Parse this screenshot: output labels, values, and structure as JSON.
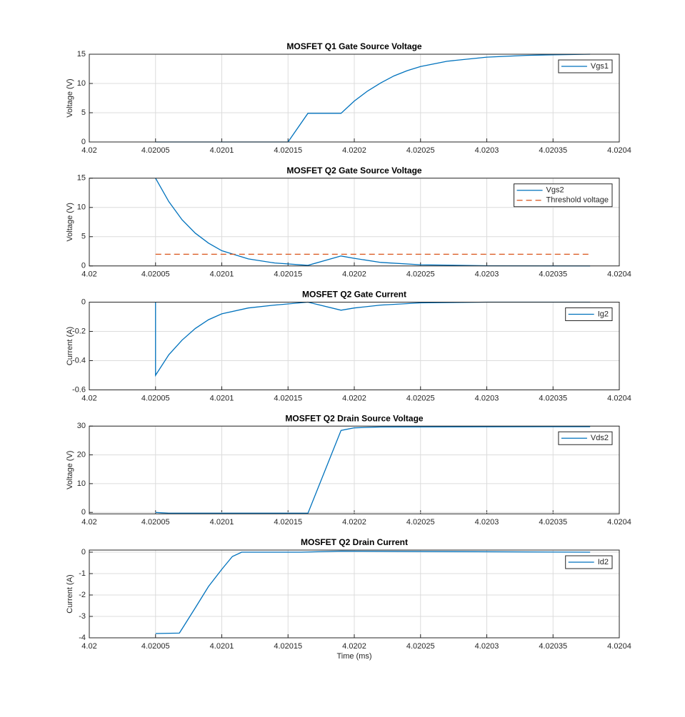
{
  "chart_data": [
    {
      "type": "line",
      "title": "MOSFET Q1 Gate Source Voltage",
      "ylabel": "Voltage (V)",
      "xlim": [
        4.02,
        4.0204
      ],
      "xticks": [
        4.02,
        4.02005,
        4.0201,
        4.02015,
        4.0202,
        4.02025,
        4.0203,
        4.02035,
        4.0204
      ],
      "ylim": [
        0,
        15
      ],
      "yticks": [
        0,
        5,
        10,
        15
      ],
      "grid": true,
      "legend": "northeast",
      "series": [
        {
          "name": "Vgs1",
          "color": "#0072BD",
          "line_style": "solid",
          "x": [
            4.02005,
            4.02015,
            4.020165,
            4.02019,
            4.0202,
            4.02021,
            4.02022,
            4.02023,
            4.02024,
            4.02025,
            4.02027,
            4.0203,
            4.02033,
            4.02035,
            4.020378
          ],
          "values": [
            0,
            0,
            4.9,
            4.9,
            7.0,
            8.7,
            10.1,
            11.3,
            12.2,
            12.9,
            13.8,
            14.5,
            14.8,
            14.9,
            15
          ]
        }
      ]
    },
    {
      "type": "line",
      "title": "MOSFET Q2 Gate Source Voltage",
      "ylabel": "Voltage (V)",
      "xlim": [
        4.02,
        4.0204
      ],
      "xticks": [
        4.02,
        4.02005,
        4.0201,
        4.02015,
        4.0202,
        4.02025,
        4.0203,
        4.02035,
        4.0204
      ],
      "ylim": [
        0,
        15
      ],
      "yticks": [
        0,
        5,
        10,
        15
      ],
      "grid": true,
      "legend": "northeast",
      "series": [
        {
          "name": "Vgs2",
          "color": "#0072BD",
          "line_style": "solid",
          "x": [
            4.02005,
            4.02006,
            4.02007,
            4.02008,
            4.02009,
            4.0201,
            4.02012,
            4.02014,
            4.020165,
            4.02019,
            4.0202,
            4.02022,
            4.02025,
            4.0203,
            4.020378
          ],
          "values": [
            15,
            11.0,
            7.9,
            5.6,
            3.9,
            2.6,
            1.2,
            0.5,
            0.1,
            1.7,
            1.3,
            0.6,
            0.2,
            0.03,
            0
          ]
        },
        {
          "name": "Threshold voltage",
          "color": "#D95319",
          "line_style": "dashed",
          "x": [
            4.02005,
            4.020378
          ],
          "values": [
            2,
            2
          ]
        }
      ]
    },
    {
      "type": "line",
      "title": "MOSFET Q2 Gate Current",
      "ylabel": "Current (A)",
      "xlim": [
        4.02,
        4.0204
      ],
      "xticks": [
        4.02,
        4.02005,
        4.0201,
        4.02015,
        4.0202,
        4.02025,
        4.0203,
        4.02035,
        4.0204
      ],
      "ylim": [
        -0.6,
        0
      ],
      "yticks": [
        -0.6,
        -0.4,
        -0.2,
        0
      ],
      "grid": true,
      "legend": "northeast",
      "series": [
        {
          "name": "Ig2",
          "color": "#0072BD",
          "line_style": "solid",
          "x": [
            4.02005,
            4.02005,
            4.02006,
            4.02007,
            4.02008,
            4.02009,
            4.0201,
            4.02012,
            4.02014,
            4.020165,
            4.02019,
            4.0202,
            4.02022,
            4.02025,
            4.0203,
            4.020378
          ],
          "values": [
            0,
            -0.5,
            -0.36,
            -0.26,
            -0.18,
            -0.12,
            -0.08,
            -0.04,
            -0.02,
            0,
            -0.055,
            -0.04,
            -0.02,
            -0.005,
            0,
            0
          ]
        }
      ]
    },
    {
      "type": "line",
      "title": "MOSFET Q2 Drain Source Voltage",
      "ylabel": "Voltage (V)",
      "xlim": [
        4.02,
        4.0204
      ],
      "xticks": [
        4.02,
        4.02005,
        4.0201,
        4.02015,
        4.0202,
        4.02025,
        4.0203,
        4.02035,
        4.0204
      ],
      "ylim": [
        -0.5,
        30
      ],
      "yticks": [
        0,
        10,
        20,
        30
      ],
      "grid": true,
      "legend": "northeast",
      "series": [
        {
          "name": "Vds2",
          "color": "#0072BD",
          "line_style": "solid",
          "x": [
            4.02005,
            4.02006,
            4.020165,
            4.02019,
            4.0202,
            4.02022,
            4.020378
          ],
          "values": [
            0,
            -0.3,
            -0.3,
            28.5,
            29.4,
            29.7,
            29.8
          ]
        }
      ]
    },
    {
      "type": "line",
      "title": "MOSFET Q2 Drain Current",
      "ylabel": "Current (A)",
      "xlabel": "Time (ms)",
      "xlim": [
        4.02,
        4.0204
      ],
      "xticks": [
        4.02,
        4.02005,
        4.0201,
        4.02015,
        4.0202,
        4.02025,
        4.0203,
        4.02035,
        4.0204
      ],
      "ylim": [
        -4,
        0.1
      ],
      "yticks": [
        -4,
        -3,
        -2,
        -1,
        0
      ],
      "grid": true,
      "legend": "northeast",
      "series": [
        {
          "name": "Id2",
          "color": "#0072BD",
          "line_style": "solid",
          "x": [
            4.02005,
            4.020068,
            4.02008,
            4.02009,
            4.0201,
            4.020108,
            4.020115,
            4.02016,
            4.02019,
            4.020378
          ],
          "values": [
            -3.8,
            -3.78,
            -2.6,
            -1.6,
            -0.8,
            -0.2,
            0,
            0,
            0.05,
            0
          ]
        }
      ]
    }
  ]
}
